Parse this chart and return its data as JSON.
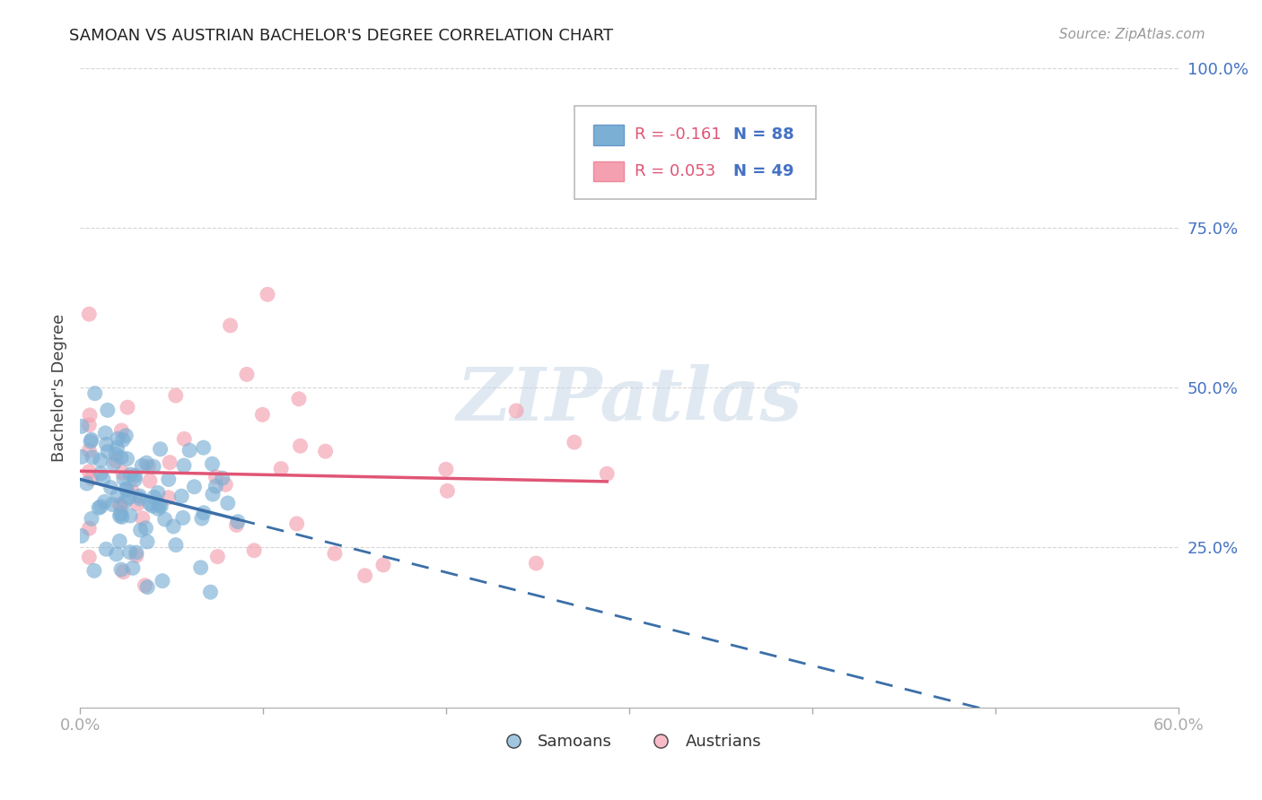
{
  "title": "SAMOAN VS AUSTRIAN BACHELOR'S DEGREE CORRELATION CHART",
  "source": "Source: ZipAtlas.com",
  "ylabel": "Bachelor's Degree",
  "xlim": [
    0.0,
    0.6
  ],
  "ylim": [
    0.0,
    1.0
  ],
  "ytick_positions": [
    0.25,
    0.5,
    0.75,
    1.0
  ],
  "ytick_labels": [
    "25.0%",
    "50.0%",
    "75.0%",
    "100.0%"
  ],
  "xtick_positions": [
    0.0,
    0.1,
    0.2,
    0.3,
    0.4,
    0.5,
    0.6
  ],
  "xtick_labels": [
    "0.0%",
    "",
    "",
    "",
    "",
    "",
    "60.0%"
  ],
  "watermark": "ZIPatlas",
  "samoan_color": "#7bafd4",
  "austrian_color": "#f4a0b0",
  "samoan_line_color": "#3b6fa8",
  "austrian_line_color": "#e05575",
  "background_color": "#ffffff",
  "grid_color": "#cccccc",
  "title_fontsize": 13,
  "tick_label_color": "#4472c4",
  "samoan_R": -0.161,
  "samoan_N": 88,
  "austrian_R": 0.053,
  "austrian_N": 49,
  "legend_R_color": "#e05575",
  "legend_N_color": "#4472c4",
  "bottom_legend_labels": [
    "Samoans",
    "Austrians"
  ]
}
